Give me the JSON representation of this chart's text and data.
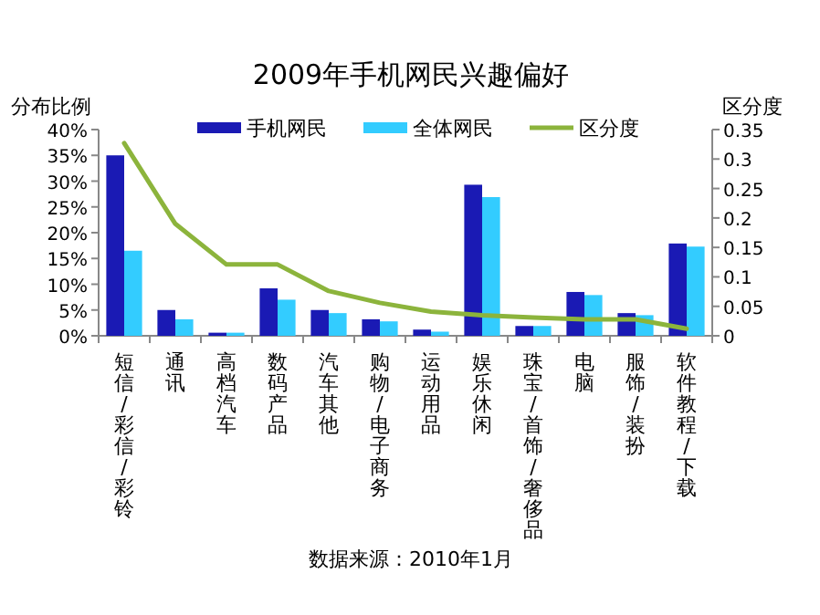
{
  "chart_data": {
    "type": "bar",
    "title": "2009年手机网民兴趣偏好",
    "ylabel": "分布比例",
    "y2label": "区分度",
    "categories": [
      "短信/彩信/彩铃",
      "通讯",
      "高档汽车",
      "数码产品",
      "汽车其他",
      "购物/电子商务",
      "运动用品",
      "娱乐休闲",
      "珠宝/首饰/奢侈品",
      "电脑",
      "服饰/装扮",
      "软件教程/下载"
    ],
    "series": [
      {
        "name": "手机网民",
        "color": "#1a1ab4",
        "values": [
          35,
          5.0,
          0.6,
          9.2,
          5.0,
          3.2,
          1.2,
          29.3,
          1.9,
          8.5,
          4.4,
          17.9
        ]
      },
      {
        "name": "全体网民",
        "color": "#33ccff",
        "values": [
          16.5,
          3.2,
          0.6,
          7.0,
          4.4,
          2.8,
          0.8,
          26.9,
          1.9,
          7.9,
          4.0,
          17.3
        ]
      },
      {
        "name": "区分度",
        "type": "line",
        "axis": "y2",
        "color": "#8cb43c",
        "values": [
          0.327,
          0.19,
          0.121,
          0.121,
          0.076,
          0.056,
          0.041,
          0.035,
          0.031,
          0.028,
          0.028,
          0.012
        ]
      }
    ],
    "ylim": [
      0,
      40
    ],
    "yticks": [
      {
        "value": 0,
        "label": "0%"
      },
      {
        "value": 5,
        "label": "5%"
      },
      {
        "value": 10,
        "label": "10%"
      },
      {
        "value": 15,
        "label": "15%"
      },
      {
        "value": 20,
        "label": "20%"
      },
      {
        "value": 25,
        "label": "25%"
      },
      {
        "value": 30,
        "label": "30%"
      },
      {
        "value": 35,
        "label": "35%"
      },
      {
        "value": 40,
        "label": "40%"
      }
    ],
    "y2lim": [
      0,
      0.35
    ],
    "y2ticks": [
      0,
      0.05,
      0.1,
      0.15,
      0.2,
      0.25,
      0.3,
      0.35
    ],
    "legend": "top",
    "annotations": [
      "数据来源：2010年1月"
    ]
  }
}
